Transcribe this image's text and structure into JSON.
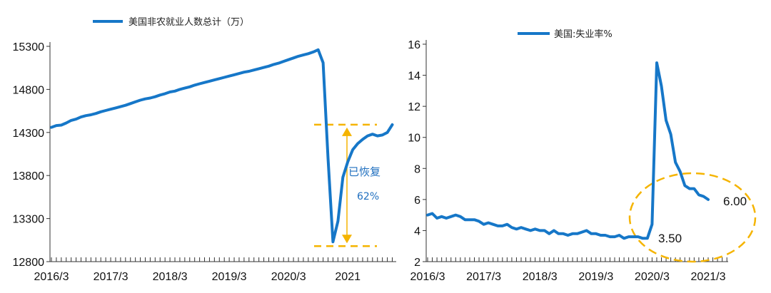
{
  "colors": {
    "series": "#1677c8",
    "highlight": "#f5b400",
    "annotation_text": "#1f6fbf",
    "axis": "#333333"
  },
  "chart_data": [
    {
      "type": "line",
      "title": "美国非农就业人数总计（万）",
      "legend": {
        "label": "美国非农就业人数总计（万）",
        "position": "top"
      },
      "ylim": [
        12800,
        15300
      ],
      "yticks": [
        "15300",
        "14800",
        "14300",
        "13800",
        "13300",
        "12800"
      ],
      "ytick_values": [
        15300,
        14800,
        14300,
        13800,
        13300,
        12800
      ],
      "xtick_labels": [
        "2016/3",
        "2017/3",
        "2018/3",
        "2019/3",
        "2020/3",
        "2021"
      ],
      "xtick_months": [
        0,
        12,
        24,
        36,
        48,
        60
      ],
      "x_start": "2016/3",
      "values": [
        14360,
        14380,
        14385,
        14410,
        14440,
        14455,
        14480,
        14495,
        14505,
        14520,
        14540,
        14555,
        14570,
        14585,
        14600,
        14615,
        14635,
        14655,
        14675,
        14690,
        14700,
        14715,
        14735,
        14750,
        14770,
        14780,
        14800,
        14815,
        14830,
        14850,
        14865,
        14880,
        14895,
        14910,
        14925,
        14940,
        14955,
        14970,
        14985,
        15000,
        15010,
        15025,
        15040,
        15055,
        15070,
        15090,
        15105,
        15125,
        15145,
        15165,
        15185,
        15200,
        15215,
        15235,
        15260,
        15110,
        14000,
        13030,
        13270,
        13780,
        13960,
        14100,
        14170,
        14220,
        14260,
        14280,
        14260,
        14270,
        14300,
        14390
      ],
      "annotations": {
        "recovered_label": "已恢复",
        "recovered_pct": "62%",
        "upper_level": 14390,
        "lower_level": 12980
      }
    },
    {
      "type": "line",
      "title": "美国:失业率%",
      "legend": {
        "label": "美国:失业率%",
        "position": "top"
      },
      "ylim": [
        2,
        16
      ],
      "yticks": [
        "16",
        "14",
        "12",
        "10",
        "8",
        "6",
        "4",
        "2"
      ],
      "ytick_values": [
        16,
        14,
        12,
        10,
        8,
        6,
        4,
        2
      ],
      "xtick_labels": [
        "2016/3",
        "2017/3",
        "2018/3",
        "2019/3",
        "2020/3",
        "2021/3"
      ],
      "xtick_months": [
        0,
        12,
        24,
        36,
        48,
        60
      ],
      "x_start": "2016/3",
      "values": [
        5.0,
        5.1,
        4.8,
        4.9,
        4.8,
        4.9,
        5.0,
        4.9,
        4.7,
        4.7,
        4.7,
        4.6,
        4.4,
        4.5,
        4.4,
        4.3,
        4.3,
        4.4,
        4.2,
        4.1,
        4.2,
        4.1,
        4.0,
        4.1,
        4.0,
        4.0,
        3.8,
        4.0,
        3.8,
        3.8,
        3.7,
        3.8,
        3.8,
        3.9,
        4.0,
        3.8,
        3.8,
        3.7,
        3.7,
        3.6,
        3.6,
        3.7,
        3.5,
        3.6,
        3.6,
        3.6,
        3.5,
        3.5,
        4.4,
        14.8,
        13.3,
        11.1,
        10.2,
        8.4,
        7.8,
        6.9,
        6.7,
        6.7,
        6.3,
        6.2,
        6.0
      ],
      "annotations": {
        "low_label": "3.50",
        "end_label": "6.00"
      }
    }
  ]
}
